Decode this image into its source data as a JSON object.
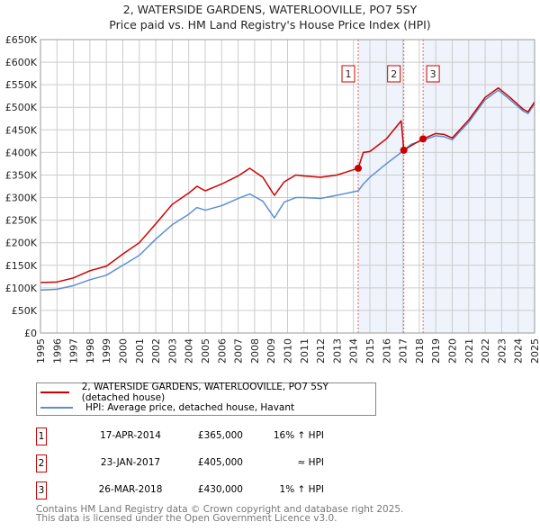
{
  "title": [
    "2, WATERSIDE GARDENS, WATERLOOVILLE, PO7 5SY",
    "Price paid vs. HM Land Registry's House Price Index (HPI)"
  ],
  "colors": {
    "property": "#cc0000",
    "hpi": "#5b8fd4",
    "shade": "#eef3fc"
  },
  "chart_data": {
    "type": "line",
    "xlim": [
      1995,
      2025
    ],
    "ylim": [
      0,
      650000
    ],
    "yticks": [
      0,
      50000,
      100000,
      150000,
      200000,
      250000,
      300000,
      350000,
      400000,
      450000,
      500000,
      550000,
      600000,
      650000
    ],
    "ytick_labels": [
      "£0",
      "£50K",
      "£100K",
      "£150K",
      "£200K",
      "£250K",
      "£300K",
      "£350K",
      "£400K",
      "£450K",
      "£500K",
      "£550K",
      "£600K",
      "£650K"
    ],
    "xticks": [
      1995,
      1996,
      1997,
      1998,
      1999,
      2000,
      2001,
      2002,
      2003,
      2004,
      2005,
      2006,
      2007,
      2008,
      2009,
      2010,
      2011,
      2012,
      2013,
      2014,
      2015,
      2016,
      2017,
      2018,
      2019,
      2020,
      2021,
      2022,
      2023,
      2024,
      2025
    ],
    "grid": true,
    "series": [
      {
        "name": "2, WATERSIDE GARDENS, WATERLOOVILLE, PO7 5SY (detached house)",
        "color": "#cc0000",
        "x": [
          1995,
          1996,
          1997,
          1998,
          1999,
          2000,
          2001,
          2002,
          2003,
          2004,
          2004.5,
          2005,
          2006,
          2007,
          2007.7,
          2008.5,
          2009.2,
          2009.8,
          2010.5,
          2011,
          2012,
          2013,
          2014.29,
          2014.6,
          2015,
          2016,
          2016.9,
          2017.06,
          2017.5,
          2018.23,
          2019,
          2019.5,
          2020,
          2021,
          2022,
          2022.8,
          2023.5,
          2024.3,
          2024.6,
          2025
        ],
        "y": [
          112000,
          113000,
          122000,
          138000,
          148000,
          175000,
          200000,
          242000,
          285000,
          310000,
          325000,
          315000,
          330000,
          348000,
          365000,
          345000,
          305000,
          335000,
          350000,
          348000,
          345000,
          350000,
          365000,
          400000,
          402000,
          430000,
          470000,
          405000,
          415000,
          430000,
          442000,
          440000,
          432000,
          472000,
          522000,
          543000,
          522000,
          496000,
          490000,
          512000
        ]
      },
      {
        "name": "HPI: Average price, detached house, Havant",
        "color": "#5b8fd4",
        "x": [
          1995,
          1996,
          1997,
          1998,
          1999,
          2000,
          2001,
          2002,
          2003,
          2004,
          2004.5,
          2005,
          2006,
          2007,
          2007.7,
          2008.5,
          2009.2,
          2009.8,
          2010.5,
          2011,
          2012,
          2013,
          2014.29,
          2014.6,
          2015,
          2016,
          2016.9,
          2017.06,
          2017.5,
          2018.23,
          2019,
          2019.5,
          2020,
          2021,
          2022,
          2022.8,
          2023.5,
          2024.3,
          2024.6,
          2025
        ],
        "y": [
          95000,
          97000,
          105000,
          118000,
          128000,
          150000,
          172000,
          208000,
          240000,
          263000,
          278000,
          272000,
          282000,
          298000,
          308000,
          292000,
          255000,
          290000,
          300000,
          300000,
          298000,
          305000,
          315000,
          330000,
          345000,
          375000,
          400000,
          405000,
          418000,
          427000,
          437000,
          435000,
          428000,
          467000,
          517000,
          538000,
          517000,
          492000,
          486000,
          508000
        ]
      }
    ],
    "sales": [
      {
        "label": "1",
        "x": 2014.29,
        "y": 365000
      },
      {
        "label": "2",
        "x": 2017.06,
        "y": 405000
      },
      {
        "label": "3",
        "x": 2018.23,
        "y": 430000
      }
    ]
  },
  "legend": [
    "2, WATERSIDE GARDENS, WATERLOOVILLE, PO7 5SY (detached house)",
    "HPI: Average price, detached house, Havant"
  ],
  "transactions": [
    {
      "num": "1",
      "date": "17-APR-2014",
      "price": "£365,000",
      "hpi": "16% ↑ HPI"
    },
    {
      "num": "2",
      "date": "23-JAN-2017",
      "price": "£405,000",
      "hpi": "≈ HPI"
    },
    {
      "num": "3",
      "date": "26-MAR-2018",
      "price": "£430,000",
      "hpi": "1% ↑ HPI"
    }
  ],
  "footer": [
    "Contains HM Land Registry data © Crown copyright and database right 2025.",
    "This data is licensed under the Open Government Licence v3.0."
  ]
}
